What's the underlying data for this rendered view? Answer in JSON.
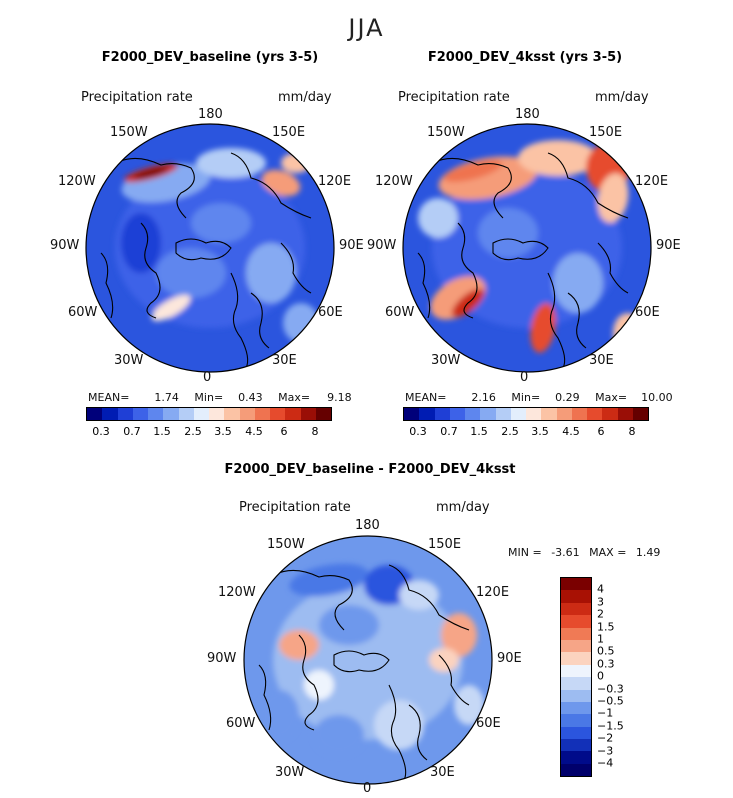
{
  "figure_title": "JJA",
  "panels": [
    {
      "title": "F2000_DEV_baseline (yrs 3-5)",
      "variable": "Precipitation rate",
      "units": "mm/day",
      "lon_labels": [
        "180",
        "150E",
        "120E",
        "90E",
        "60E",
        "30E",
        "0",
        "30W",
        "60W",
        "90W",
        "120W",
        "150W"
      ],
      "stats": {
        "mean_label": "MEAN=",
        "mean": "1.74",
        "min_label": "Min=",
        "min": "0.43",
        "max_label": "Max=",
        "max": "9.18"
      },
      "colorbar_ticks": [
        "0.3",
        "0.7",
        "1.5",
        "2.5",
        "3.5",
        "4.5",
        "6",
        "8"
      ]
    },
    {
      "title": "F2000_DEV_4ksst (yrs 3-5)",
      "variable": "Precipitation rate",
      "units": "mm/day",
      "lon_labels": [
        "180",
        "150E",
        "120E",
        "90E",
        "60E",
        "30E",
        "0",
        "30W",
        "60W",
        "90W",
        "120W",
        "150W"
      ],
      "stats": {
        "mean_label": "MEAN=",
        "mean": "2.16",
        "min_label": "Min=",
        "min": "0.29",
        "max_label": "Max=",
        "max": "10.00"
      },
      "colorbar_ticks": [
        "0.3",
        "0.7",
        "1.5",
        "2.5",
        "3.5",
        "4.5",
        "6",
        "8"
      ]
    },
    {
      "title": "F2000_DEV_baseline - F2000_DEV_4ksst",
      "variable": "Precipitation rate",
      "units": "mm/day",
      "lon_labels": [
        "180",
        "150E",
        "120E",
        "90E",
        "60E",
        "30E",
        "0",
        "30W",
        "60W",
        "90W",
        "120W",
        "150W"
      ],
      "stats": {
        "min_label": "MIN =",
        "min": "-3.61",
        "max_label": "MAX =",
        "max": "1.49"
      },
      "colorbar_ticks": [
        "4",
        "3",
        "2",
        "1.5",
        "1",
        "0.5",
        "0.3",
        "0",
        "−0.3",
        "−0.5",
        "−1",
        "−1.5",
        "−2",
        "−3",
        "−4"
      ]
    }
  ],
  "colors": {
    "abs_scale": [
      "#00007a",
      "#001cb3",
      "#1f3fd6",
      "#3d62e8",
      "#5e86ee",
      "#86aaf2",
      "#b4cdf6",
      "#e3eefc",
      "#fde7dc",
      "#fbc3a5",
      "#f59c79",
      "#ef7350",
      "#e64b2d",
      "#cc2b14",
      "#9a0e06",
      "#650000"
    ],
    "diff_scale": [
      "#7a0000",
      "#a81104",
      "#cc2b14",
      "#e64b2d",
      "#f07a55",
      "#f6a587",
      "#fbd3bf",
      "#eef4fd",
      "#c6d8f6",
      "#9dbcf1",
      "#6e98ec",
      "#4a78e6",
      "#2b55de",
      "#1230b8",
      "#000b8a",
      "#00006b"
    ]
  },
  "chart_data": [
    {
      "type": "heatmap",
      "title": "F2000_DEV_baseline (yrs 3-5)",
      "projection": "north polar stereographic",
      "variable": "Precipitation rate",
      "units": "mm/day",
      "mean": 1.74,
      "min": 0.43,
      "max": 9.18,
      "contour_levels": [
        0.3,
        0.5,
        0.7,
        1,
        1.5,
        2,
        2.5,
        3,
        3.5,
        4,
        4.5,
        5,
        6,
        7,
        8
      ],
      "colorbar_tick_labels": [
        "0.3",
        "0.7",
        "1.5",
        "2.5",
        "3.5",
        "4.5",
        "6",
        "8"
      ]
    },
    {
      "type": "heatmap",
      "title": "F2000_DEV_4ksst (yrs 3-5)",
      "projection": "north polar stereographic",
      "variable": "Precipitation rate",
      "units": "mm/day",
      "mean": 2.16,
      "min": 0.29,
      "max": 10.0,
      "contour_levels": [
        0.3,
        0.5,
        0.7,
        1,
        1.5,
        2,
        2.5,
        3,
        3.5,
        4,
        4.5,
        5,
        6,
        7,
        8
      ],
      "colorbar_tick_labels": [
        "0.3",
        "0.7",
        "1.5",
        "2.5",
        "3.5",
        "4.5",
        "6",
        "8"
      ]
    },
    {
      "type": "heatmap",
      "title": "F2000_DEV_baseline - F2000_DEV_4ksst",
      "projection": "north polar stereographic",
      "variable": "Precipitation rate",
      "units": "mm/day",
      "min": -3.61,
      "max": 1.49,
      "contour_levels": [
        4,
        3,
        2,
        1.5,
        1,
        0.5,
        0.3,
        0,
        -0.3,
        -0.5,
        -1,
        -1.5,
        -2,
        -3,
        -4
      ],
      "colorbar_tick_labels": [
        "4",
        "3",
        "2",
        "1.5",
        "1",
        "0.5",
        "0.3",
        "0",
        "−0.3",
        "−0.5",
        "−1",
        "−1.5",
        "−2",
        "−3",
        "−4"
      ]
    }
  ]
}
